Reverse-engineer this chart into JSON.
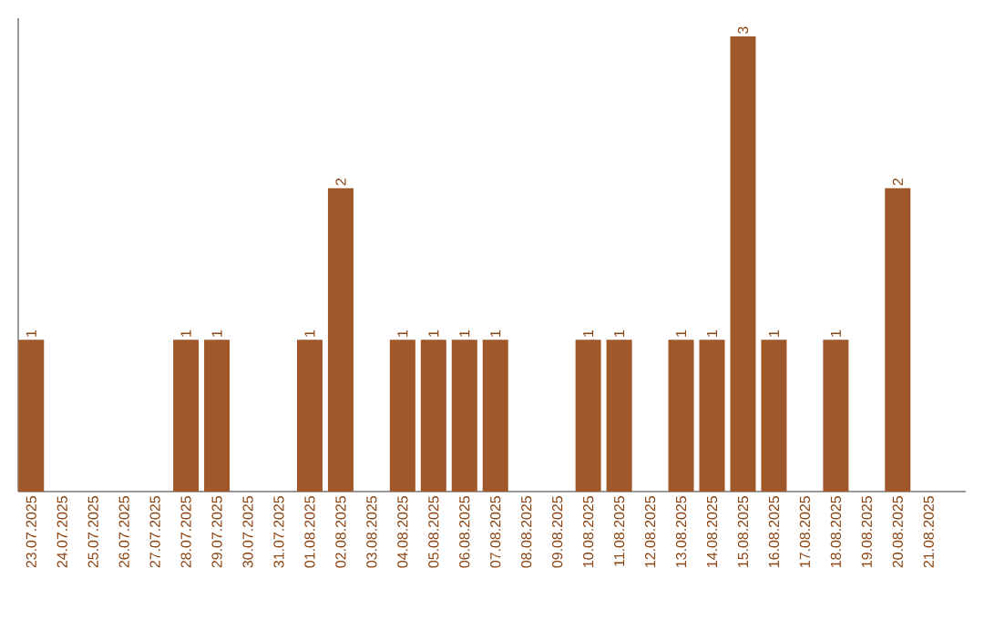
{
  "chart_data": {
    "type": "bar",
    "categories": [
      "23.07.2025",
      "24.07.2025",
      "25.07.2025",
      "26.07.2025",
      "27.07.2025",
      "28.07.2025",
      "29.07.2025",
      "30.07.2025",
      "31.07.2025",
      "01.08.2025",
      "02.08.2025",
      "03.08.2025",
      "04.08.2025",
      "05.08.2025",
      "06.08.2025",
      "07.08.2025",
      "08.08.2025",
      "09.08.2025",
      "10.08.2025",
      "11.08.2025",
      "12.08.2025",
      "13.08.2025",
      "14.08.2025",
      "15.08.2025",
      "16.08.2025",
      "17.08.2025",
      "18.08.2025",
      "19.08.2025",
      "20.08.2025",
      "21.08.2025"
    ],
    "values": [
      1,
      0,
      0,
      0,
      0,
      1,
      1,
      0,
      0,
      1,
      2,
      0,
      1,
      1,
      1,
      1,
      0,
      0,
      1,
      1,
      0,
      1,
      1,
      3,
      1,
      0,
      1,
      0,
      2,
      0
    ],
    "value_labels": [
      "1",
      null,
      null,
      null,
      null,
      "1",
      "1",
      null,
      null,
      "1",
      "2",
      null,
      "1",
      "1",
      "1",
      "1",
      null,
      null,
      "1",
      "1",
      null,
      "1",
      "1",
      "3",
      "1",
      null,
      "1",
      null,
      "2",
      null
    ],
    "color": "#a0582a"
  }
}
